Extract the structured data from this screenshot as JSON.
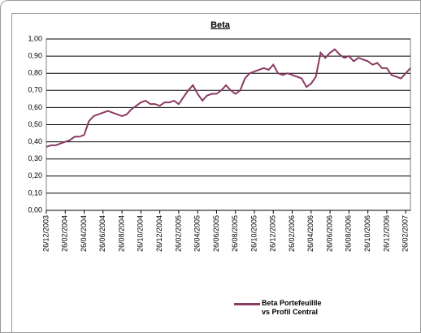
{
  "chart_data": {
    "type": "line",
    "title": "Beta",
    "categories": [
      "26/12/2003",
      null,
      null,
      null,
      "26/02/2004",
      null,
      null,
      null,
      "26/04/2004",
      null,
      null,
      null,
      "26/06/2004",
      null,
      null,
      null,
      "26/08/2004",
      null,
      null,
      null,
      "26/10/2004",
      null,
      null,
      null,
      "26/12/2004",
      null,
      null,
      null,
      "26/02/2005",
      null,
      null,
      null,
      "26/04/2005",
      null,
      null,
      null,
      "26/06/2005",
      null,
      null,
      null,
      "26/08/2005",
      null,
      null,
      null,
      "26/10/2005",
      null,
      null,
      null,
      "26/12/2005",
      null,
      null,
      null,
      "26/02/2006",
      null,
      null,
      null,
      "26/04/2006",
      null,
      null,
      null,
      "26/06/2006",
      null,
      null,
      null,
      "26/08/2006",
      null,
      null,
      null,
      "26/10/2006",
      null,
      null,
      null,
      "26/12/2006",
      null,
      null,
      null,
      "26/02/2007",
      null
    ],
    "series": [
      {
        "name": "Beta Portefeuillle vs Profil Central",
        "color": "#8b3a62",
        "values": [
          0.37,
          0.38,
          0.38,
          0.39,
          0.4,
          0.41,
          0.43,
          0.43,
          0.44,
          0.52,
          0.55,
          0.56,
          0.57,
          0.58,
          0.57,
          0.56,
          0.55,
          0.56,
          0.59,
          0.61,
          0.63,
          0.64,
          0.62,
          0.62,
          0.61,
          0.63,
          0.63,
          0.64,
          0.62,
          0.66,
          0.7,
          0.73,
          0.68,
          0.64,
          0.67,
          0.68,
          0.68,
          0.7,
          0.73,
          0.7,
          0.68,
          0.7,
          0.77,
          0.8,
          0.81,
          0.82,
          0.83,
          0.82,
          0.85,
          0.8,
          0.79,
          0.8,
          0.79,
          0.78,
          0.77,
          0.72,
          0.74,
          0.78,
          0.92,
          0.89,
          0.92,
          0.94,
          0.91,
          0.89,
          0.9,
          0.87,
          0.89,
          0.88,
          0.87,
          0.85,
          0.86,
          0.83,
          0.83,
          0.79,
          0.78,
          0.77,
          0.8,
          0.83
        ]
      }
    ],
    "ylim": [
      0,
      1
    ],
    "yticks": [
      {
        "value": 0,
        "label": "0,00"
      },
      {
        "value": 0.1,
        "label": "0,10"
      },
      {
        "value": 0.2,
        "label": "0,20"
      },
      {
        "value": 0.3,
        "label": "0,30"
      },
      {
        "value": 0.4,
        "label": "0,40"
      },
      {
        "value": 0.5,
        "label": "0,50"
      },
      {
        "value": 0.6,
        "label": "0,60"
      },
      {
        "value": 0.7,
        "label": "0,70"
      },
      {
        "value": 0.8,
        "label": "0,80"
      },
      {
        "value": 0.9,
        "label": "0,90"
      },
      {
        "value": 1,
        "label": "1,00"
      }
    ],
    "grid": true
  }
}
